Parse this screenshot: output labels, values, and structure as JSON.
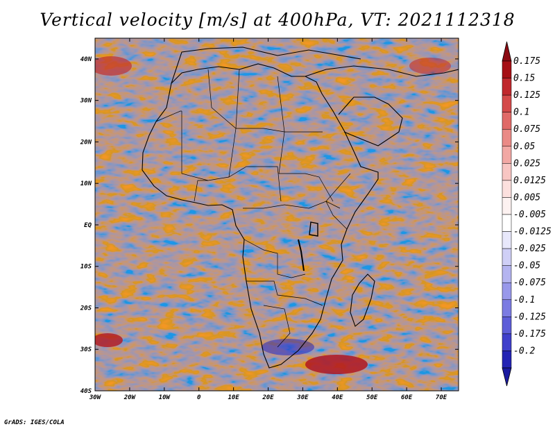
{
  "title": "Vertical velocity [m/s] at 400hPa, VT: 2021112318",
  "credit": "GrADS: IGES/COLA",
  "map": {
    "lon_range": [
      -30,
      75
    ],
    "lat_range": [
      -40,
      45
    ],
    "x_ticks": [
      {
        "value": -30,
        "label": "30W"
      },
      {
        "value": -20,
        "label": "20W"
      },
      {
        "value": -10,
        "label": "10W"
      },
      {
        "value": 0,
        "label": "0"
      },
      {
        "value": 10,
        "label": "10E"
      },
      {
        "value": 20,
        "label": "20E"
      },
      {
        "value": 30,
        "label": "30E"
      },
      {
        "value": 40,
        "label": "40E"
      },
      {
        "value": 50,
        "label": "50E"
      },
      {
        "value": 60,
        "label": "60E"
      },
      {
        "value": 70,
        "label": "70E"
      }
    ],
    "y_ticks": [
      {
        "value": 40,
        "label": "40N"
      },
      {
        "value": 30,
        "label": "30N"
      },
      {
        "value": 20,
        "label": "20N"
      },
      {
        "value": 10,
        "label": "10N"
      },
      {
        "value": 0,
        "label": "EQ"
      },
      {
        "value": -10,
        "label": "10S"
      },
      {
        "value": -20,
        "label": "20S"
      },
      {
        "value": -30,
        "label": "30S"
      },
      {
        "value": -40,
        "label": "40S"
      }
    ]
  },
  "colorbar": {
    "levels": [
      {
        "label": "0.175",
        "color": "#a50f15"
      },
      {
        "label": "0.15",
        "color": "#c0282d"
      },
      {
        "label": "0.125",
        "color": "#d44a4a"
      },
      {
        "label": "0.1",
        "color": "#e06a68"
      },
      {
        "label": "0.075",
        "color": "#ea8a86"
      },
      {
        "label": "0.05",
        "color": "#f2a8a4"
      },
      {
        "label": "0.025",
        "color": "#f8c6c3"
      },
      {
        "label": "0.0125",
        "color": "#fce0de"
      },
      {
        "label": "0.005",
        "color": "#fdf2f1"
      },
      {
        "label": "-0.005",
        "color": "#ffffff"
      },
      {
        "label": "-0.0125",
        "color": "#e8e8fb"
      },
      {
        "label": "-0.025",
        "color": "#cfcff6"
      },
      {
        "label": "-0.05",
        "color": "#b4b4f0"
      },
      {
        "label": "-0.075",
        "color": "#9898ea"
      },
      {
        "label": "-0.1",
        "color": "#7b7be2"
      },
      {
        "label": "-0.125",
        "color": "#5d5dd8"
      },
      {
        "label": "-0.175",
        "color": "#3f3fcb"
      },
      {
        "label": "-0.2",
        "color": "#2323b4"
      }
    ],
    "top_arrow_color": "#8b0a12",
    "bottom_arrow_color": "#1a1aa0"
  }
}
